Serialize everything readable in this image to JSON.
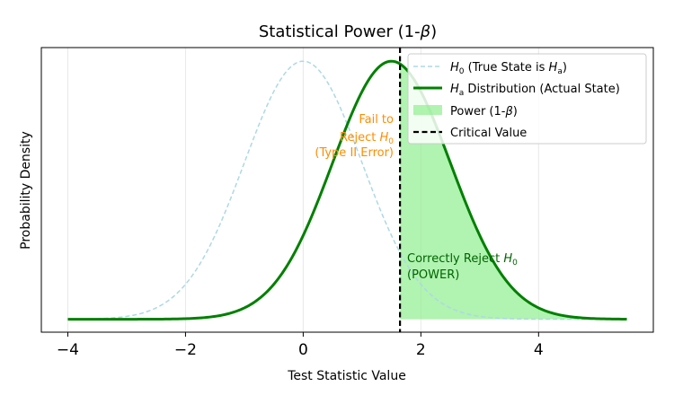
{
  "chart_data": {
    "type": "line",
    "title": "Statistical Power (1-",
    "title_symbol": "β",
    "title_close": ")",
    "xlabel": "Test Statistic Value",
    "ylabel": "Probability Density",
    "xlim": [
      -4.45,
      5.95
    ],
    "ylim": [
      -0.02,
      0.42
    ],
    "x_ticks": [
      -4,
      -2,
      0,
      2,
      4
    ],
    "x_tick_labels": [
      "−4",
      "−2",
      "0",
      "2",
      "4"
    ],
    "grid": true,
    "legend_position": "upper-right",
    "critical_value": 1.645,
    "series": [
      {
        "key": "h0",
        "name_symbol": "H",
        "name_sub": "0",
        "name_mid": " (True State is ",
        "name_symbol2": "H",
        "name_sub2": "a",
        "name_end": ")",
        "distribution": "normal",
        "mean": 0,
        "sd": 1,
        "x_range": [
          -4,
          5.5
        ],
        "color": "#add8e6",
        "style": "dashed"
      },
      {
        "key": "ha",
        "name_symbol": "H",
        "name_sub": "a",
        "name_end": " Distribution (Actual State)",
        "distribution": "normal",
        "mean": 1.5,
        "sd": 1,
        "x_range": [
          -4,
          5.5
        ],
        "color": "#008000",
        "style": "solid"
      }
    ],
    "power_area": {
      "label": "Power (1-",
      "label_symbol": "β",
      "label_close": ")",
      "from": 1.645,
      "to": 5.5,
      "color": "#90ee90"
    },
    "critical_line": {
      "label": "Critical Value",
      "color": "#000000"
    },
    "annotations": {
      "fail": {
        "line1": "Fail to",
        "line2": "Reject ",
        "line2_symbol": "H",
        "line2_sub": "0",
        "line3": "(Type II Error)",
        "color": "#ff8c00"
      },
      "power": {
        "line1": "Correctly Reject ",
        "line1_symbol": "H",
        "line1_sub": "0",
        "line2": "(POWER)",
        "color": "#006400"
      }
    }
  }
}
